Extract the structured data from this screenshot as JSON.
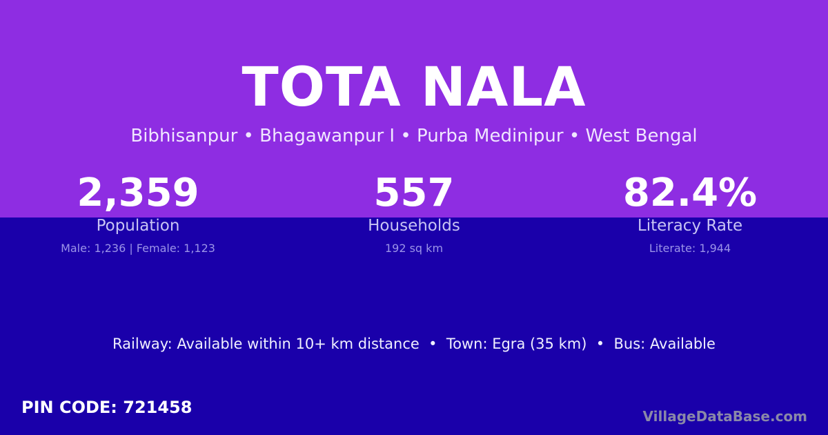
{
  "title": "TOTA NALA",
  "location": "Bibhisanpur • Bhagawanpur I • Purba Medinipur • West Bengal",
  "stats": [
    {
      "value": "2,359",
      "label": "Population",
      "detail": "Male: 1,236 | Female: 1,123"
    },
    {
      "value": "557",
      "label": "Households",
      "detail": "192 sq km"
    },
    {
      "value": "82.4%",
      "label": "Literacy Rate",
      "detail": "Literate: 1,944"
    }
  ],
  "access": "Railway: Available within 10+ km distance  •  Town: Egra (35 km)  •  Bus: Available",
  "pin": "PIN CODE: 721458",
  "brand": "VillageDataBase.com",
  "colors": {
    "top": "#8e2de2",
    "bottom": "#1a00aa"
  }
}
